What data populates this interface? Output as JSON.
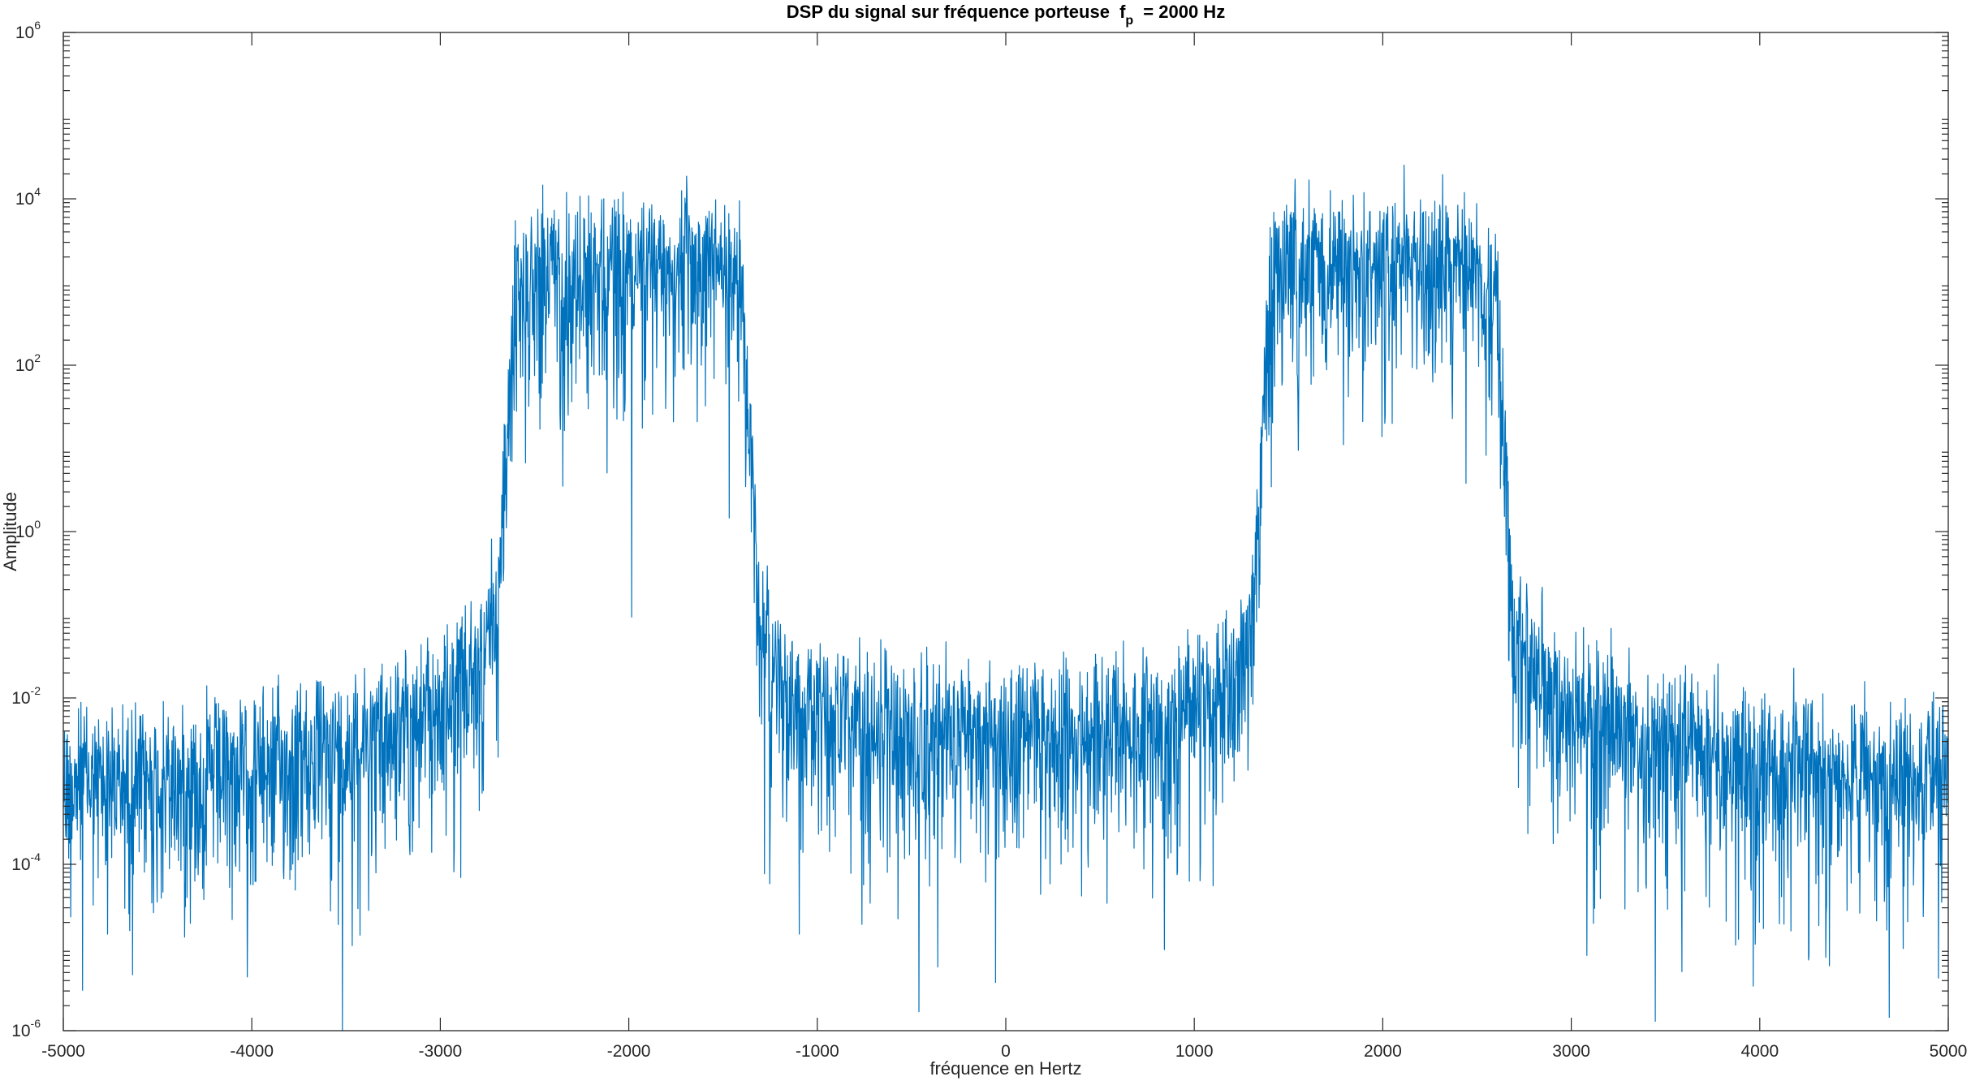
{
  "chart_data": {
    "type": "line",
    "title": "DSP du signal sur fréquence porteuse",
    "title_symbol": "f",
    "title_subscript": "p",
    "title_suffix": "= 2000 Hz",
    "xlabel": "fréquence en Hertz",
    "ylabel": "Amplitude",
    "xlim": [
      -5000,
      5000
    ],
    "ylim": [
      1e-06,
      1000000.0
    ],
    "yscale": "log",
    "grid": false,
    "legend": "none",
    "x_ticks": [
      -5000,
      -4000,
      -3000,
      -2000,
      -1000,
      0,
      1000,
      2000,
      3000,
      4000,
      5000
    ],
    "x_tick_labels": [
      "-5000",
      "-4000",
      "-3000",
      "-2000",
      "-1000",
      "0",
      "1000",
      "2000",
      "3000",
      "4000",
      "5000"
    ],
    "y_ticks": [
      {
        "base": "10",
        "exp": "-6",
        "value": 1e-06
      },
      {
        "base": "10",
        "exp": "-4",
        "value": 0.0001
      },
      {
        "base": "10",
        "exp": "-2",
        "value": 0.01
      },
      {
        "base": "10",
        "exp": "0",
        "value": 1
      },
      {
        "base": "10",
        "exp": "2",
        "value": 100
      },
      {
        "base": "10",
        "exp": "4",
        "value": 10000
      },
      {
        "base": "10",
        "exp": "6",
        "value": 1000000
      }
    ],
    "series_color": "#0072BD",
    "series": [
      {
        "x": [
          -5000,
          -4500,
          -4000,
          -3500,
          -3000,
          -2800,
          -2700,
          -2650,
          -2600,
          -2500,
          -2000,
          -1500,
          -1400,
          -1350,
          -1300,
          -1200,
          -1000,
          -500,
          0,
          500,
          1000,
          1200,
          1300,
          1350,
          1400,
          1500,
          2000,
          2500,
          2600,
          2650,
          2700,
          2800,
          3000,
          3500,
          4000,
          4500,
          5000
        ],
        "y": [
          0.0015,
          0.0015,
          0.002,
          0.004,
          0.01,
          0.03,
          0.1,
          10,
          1000,
          2000,
          2000,
          2000,
          1000,
          10,
          0.1,
          0.02,
          0.008,
          0.005,
          0.005,
          0.005,
          0.008,
          0.02,
          0.1,
          10,
          1000,
          2000,
          2000,
          2000,
          1000,
          10,
          0.1,
          0.03,
          0.01,
          0.004,
          0.002,
          0.0015,
          0.0015
        ]
      }
    ]
  }
}
